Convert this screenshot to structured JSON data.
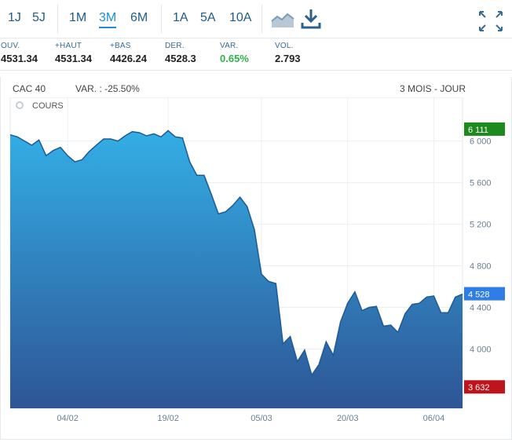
{
  "toolbar": {
    "ranges_a": [
      "1J",
      "5J"
    ],
    "ranges_b": [
      "1M",
      "3M",
      "6M"
    ],
    "ranges_c": [
      "1A",
      "5A",
      "10A"
    ],
    "active": "3M"
  },
  "stats": [
    {
      "label": "OUV.",
      "value": "4531.34",
      "color": ""
    },
    {
      "label": "+HAUT",
      "value": "4531.34",
      "color": ""
    },
    {
      "label": "+BAS",
      "value": "4426.24",
      "color": ""
    },
    {
      "label": "DER.",
      "value": "4528.3",
      "color": ""
    },
    {
      "label": "VAR.",
      "value": "0.65%",
      "color": "up"
    },
    {
      "label": "VOL.",
      "value": "2.793",
      "color": ""
    }
  ],
  "chart_header": {
    "index": "CAC 40",
    "variation": "VAR. : -25.50%",
    "period": "3 MOIS - JOUR",
    "series_label": "COURS"
  },
  "colors": {
    "area_top": "#33aee5",
    "area_bottom": "#2e5596",
    "line": "#1e5a95",
    "high_badge": "#1c8a1c",
    "low_badge": "#c0141c",
    "last_badge": "#2f7ee8"
  },
  "chart_data": {
    "type": "area",
    "title": "CAC 40",
    "ylim": [
      3430,
      6420
    ],
    "y_ticks": [
      6000,
      5600,
      5200,
      4800,
      4400,
      4000
    ],
    "y_tick_labels": [
      "6 000",
      "5 600",
      "5 200",
      "4 800",
      "4 400",
      "4 000"
    ],
    "x_tick_labels": [
      "04/02",
      "19/02",
      "05/03",
      "20/03",
      "06/04"
    ],
    "badges": {
      "high": "6 111",
      "last": "4 528",
      "low": "3 632"
    },
    "badge_values": {
      "high": 6111,
      "last": 4528,
      "low": 3632
    },
    "grid": true,
    "series": [
      {
        "name": "COURS",
        "values": [
          6060,
          6040,
          6000,
          5960,
          6010,
          5860,
          5910,
          5940,
          5860,
          5800,
          5820,
          5900,
          5960,
          6020,
          6020,
          6000,
          6050,
          6090,
          6080,
          6050,
          6070,
          6040,
          6100,
          6040,
          6030,
          5800,
          5670,
          5670,
          5490,
          5300,
          5320,
          5380,
          5460,
          5370,
          5150,
          4720,
          4650,
          4630,
          4050,
          4120,
          3880,
          3990,
          3750,
          3850,
          4070,
          3940,
          4260,
          4440,
          4550,
          4370,
          4400,
          4410,
          4220,
          4230,
          4160,
          4340,
          4430,
          4440,
          4500,
          4510,
          4350,
          4350,
          4500,
          4528
        ]
      }
    ]
  }
}
